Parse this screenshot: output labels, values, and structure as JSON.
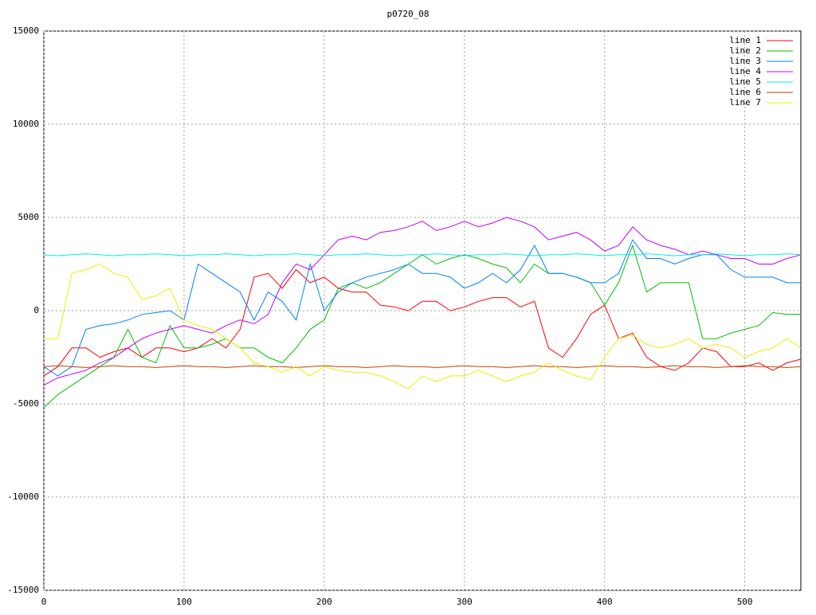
{
  "chart_data": {
    "type": "line",
    "title": "p0720_08",
    "x": [
      0,
      10,
      20,
      30,
      40,
      50,
      60,
      70,
      80,
      90,
      100,
      110,
      120,
      130,
      140,
      150,
      160,
      170,
      180,
      190,
      200,
      210,
      220,
      230,
      240,
      250,
      260,
      270,
      280,
      290,
      300,
      310,
      320,
      330,
      340,
      350,
      360,
      370,
      380,
      390,
      400,
      410,
      420,
      430,
      440,
      450,
      460,
      470,
      480,
      490,
      500,
      510,
      520,
      530,
      540
    ],
    "xlim": [
      0,
      540
    ],
    "xticks": [
      0,
      100,
      200,
      300,
      400,
      500
    ],
    "ylim": [
      -15000,
      15000
    ],
    "yticks": [
      -15000,
      -10000,
      -5000,
      0,
      5000,
      10000,
      15000
    ],
    "grid": true,
    "legend": "top-right",
    "series": [
      {
        "name": "line 1",
        "color": "#ff0000",
        "values": [
          -3500,
          -3000,
          -2000,
          -2000,
          -2500,
          -2200,
          -2000,
          -2500,
          -2000,
          -2000,
          -2200,
          -2000,
          -1500,
          -2000,
          -1000,
          1800,
          2000,
          1200,
          2200,
          1500,
          1800,
          1200,
          1000,
          1000,
          300,
          200,
          0,
          500,
          500,
          0,
          200,
          500,
          700,
          700,
          200,
          500,
          -2000,
          -2500,
          -1500,
          -200,
          300,
          -1500,
          -1200,
          -2500,
          -3000,
          -3200,
          -2800,
          -2000,
          -2200,
          -3000,
          -3000,
          -2800,
          -3200,
          -2800,
          -2600
        ]
      },
      {
        "name": "line 2",
        "color": "#00c000",
        "values": [
          -5200,
          -4500,
          -4000,
          -3500,
          -3000,
          -2500,
          -1000,
          -2500,
          -2800,
          -800,
          -2000,
          -2000,
          -1800,
          -1500,
          -2000,
          -2000,
          -2500,
          -2800,
          -2000,
          -1000,
          -500,
          1200,
          1500,
          1200,
          1500,
          2000,
          2500,
          3000,
          2500,
          2800,
          3000,
          2800,
          2500,
          2300,
          1500,
          2500,
          2000,
          2000,
          1800,
          1500,
          300,
          1500,
          3500,
          1000,
          1500,
          1500,
          1500,
          -1500,
          -1500,
          -1200,
          -1000,
          -800,
          -100,
          -200,
          -200
        ]
      },
      {
        "name": "line 3",
        "color": "#0080ff",
        "values": [
          -3000,
          -3500,
          -3000,
          -1000,
          -800,
          -700,
          -500,
          -200,
          -100,
          0,
          -500,
          2500,
          2000,
          1500,
          1000,
          -500,
          1000,
          500,
          -500,
          2500,
          0,
          1000,
          1500,
          1800,
          2000,
          2200,
          2500,
          2000,
          2000,
          1800,
          1200,
          1500,
          2000,
          1500,
          2200,
          3500,
          2000,
          2000,
          1800,
          1500,
          1500,
          2000,
          3800,
          2800,
          2800,
          2500,
          2800,
          3000,
          3000,
          2200,
          1800,
          1800,
          1800,
          1500,
          1500
        ]
      },
      {
        "name": "line 4",
        "color": "#c000ff",
        "values": [
          -4000,
          -3600,
          -3400,
          -3200,
          -2800,
          -2500,
          -2000,
          -1500,
          -1200,
          -1000,
          -800,
          -1000,
          -1200,
          -800,
          -500,
          -700,
          -200,
          1500,
          2500,
          2200,
          3000,
          3800,
          4000,
          3800,
          4200,
          4300,
          4500,
          4800,
          4300,
          4500,
          4800,
          4500,
          4700,
          5000,
          4800,
          4500,
          3800,
          4000,
          4200,
          3800,
          3200,
          3500,
          4500,
          3800,
          3500,
          3300,
          3000,
          3200,
          3000,
          2800,
          2800,
          2500,
          2500,
          2800,
          3000
        ]
      },
      {
        "name": "line 5",
        "color": "#00eeee",
        "values": [
          3000,
          2950,
          3000,
          3050,
          3000,
          2950,
          3000,
          3000,
          3050,
          3000,
          2950,
          3000,
          3000,
          3050,
          3000,
          2950,
          3000,
          3000,
          3050,
          3000,
          2950,
          3000,
          3000,
          3050,
          3000,
          2950,
          3000,
          3000,
          3050,
          3000,
          2950,
          3000,
          3000,
          3050,
          3000,
          2950,
          3000,
          3000,
          3050,
          3000,
          2950,
          3000,
          3000,
          3050,
          3000,
          2950,
          3000,
          3000,
          3050,
          3000,
          2950,
          3000,
          3000,
          3050,
          3000
        ]
      },
      {
        "name": "line 6",
        "color": "#c04000",
        "values": [
          -3000,
          -2950,
          -3000,
          -3050,
          -3000,
          -2950,
          -3000,
          -3000,
          -3050,
          -3000,
          -2950,
          -3000,
          -3000,
          -3050,
          -3000,
          -2950,
          -3000,
          -3000,
          -3050,
          -3000,
          -2950,
          -3000,
          -3000,
          -3050,
          -3000,
          -2950,
          -3000,
          -3000,
          -3050,
          -3000,
          -2950,
          -3000,
          -3000,
          -3050,
          -3000,
          -2950,
          -3000,
          -3000,
          -3050,
          -3000,
          -2950,
          -3000,
          -3000,
          -3050,
          -3000,
          -2950,
          -3000,
          -3000,
          -3050,
          -3000,
          -2950,
          -3000,
          -3000,
          -3050,
          -3000
        ]
      },
      {
        "name": "line 7",
        "color": "#eeee00",
        "values": [
          -1500,
          -1500,
          2000,
          2200,
          2500,
          2000,
          1800,
          600,
          800,
          1200,
          -500,
          -800,
          -1000,
          -1500,
          -2000,
          -2800,
          -3000,
          -3300,
          -3000,
          -3500,
          -3000,
          -3200,
          -3300,
          -3300,
          -3500,
          -3800,
          -4200,
          -3500,
          -3800,
          -3500,
          -3500,
          -3200,
          -3500,
          -3800,
          -3500,
          -3300,
          -2800,
          -3200,
          -3500,
          -3700,
          -2500,
          -1500,
          -1300,
          -1800,
          -2000,
          -1800,
          -1500,
          -2000,
          -1800,
          -2000,
          -2500,
          -2200,
          -2000,
          -1500,
          -2000
        ]
      }
    ]
  }
}
